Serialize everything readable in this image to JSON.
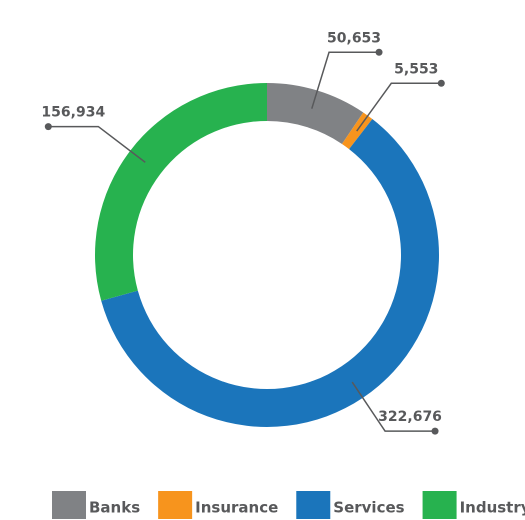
{
  "chart_data": {
    "type": "donut",
    "categories": [
      "Banks",
      "Insurance",
      "Services",
      "Industry"
    ],
    "values": [
      50653,
      5553,
      322676,
      156934
    ],
    "value_labels": [
      "50,653",
      "5,553",
      "322,676",
      "156,934"
    ],
    "colors": [
      "#808285",
      "#f7941d",
      "#1b75bb",
      "#27b24f"
    ],
    "legend": "bottom"
  }
}
